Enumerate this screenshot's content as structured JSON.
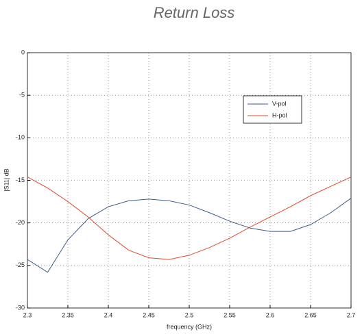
{
  "chart_data": {
    "type": "line",
    "title": "Return Loss",
    "x_label": "frequency (GHz)",
    "y_label": "|S11| dB",
    "x": [
      2.3,
      2.325,
      2.35,
      2.375,
      2.4,
      2.425,
      2.45,
      2.475,
      2.5,
      2.525,
      2.55,
      2.575,
      2.6,
      2.625,
      2.65,
      2.675,
      2.7
    ],
    "series": [
      {
        "name": "V-pol",
        "color": "#3a5a8c",
        "values": [
          -24.3,
          -25.8,
          -22,
          -19.5,
          -18.1,
          -17.4,
          -17.2,
          -17.4,
          -17.9,
          -18.8,
          -19.8,
          -20.6,
          -21,
          -21,
          -20.2,
          -18.8,
          -17.1
        ]
      },
      {
        "name": "H-pol",
        "color": "#e0482a",
        "values": [
          -14.6,
          -15.9,
          -17.5,
          -19.3,
          -21.4,
          -23.2,
          -24.1,
          -24.3,
          -23.8,
          -22.9,
          -21.8,
          -20.5,
          -19.3,
          -18.1,
          -16.8,
          -15.7,
          -14.6
        ]
      }
    ],
    "xlim": [
      2.3,
      2.7
    ],
    "xticks": [
      2.3,
      2.35,
      2.4,
      2.45,
      2.5,
      2.55,
      2.6,
      2.65,
      2.7
    ],
    "ylim": [
      -30,
      0
    ],
    "yticks": [
      -30,
      -25,
      -20,
      -15,
      -10,
      -5,
      0
    ],
    "grid": true
  }
}
